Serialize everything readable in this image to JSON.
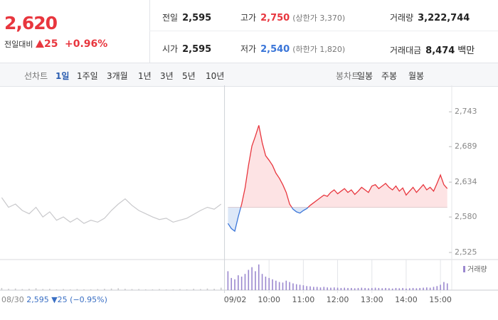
{
  "header": {
    "price": "2,620",
    "change_label": "전일대비",
    "change": "25",
    "change_pct": "+0.96%",
    "stats": [
      {
        "label": "전일",
        "value": "2,595"
      },
      {
        "label": "고가",
        "value": "2,750",
        "note": "(상한가 3,370)"
      },
      {
        "label": "거래량",
        "value": "3,222,744"
      },
      {
        "label": "시가",
        "value": "2,595"
      },
      {
        "label": "저가",
        "value": "2,540",
        "note": "(하한가 1,820)"
      },
      {
        "label": "거래대금",
        "value": "8,474",
        "unit": "백만"
      }
    ]
  },
  "tabs": {
    "line_label": "선차트",
    "periods": [
      "1일",
      "1주일",
      "3개월",
      "1년",
      "3년",
      "5년",
      "10년"
    ],
    "candle_label": "봉차트",
    "candle_periods": [
      "일봉",
      "주봉",
      "월봉"
    ]
  },
  "chart_data": {
    "type": "line",
    "ylim": [
      2514,
      2773
    ],
    "yticks": [
      {
        "value": 2525,
        "label": "2,525"
      },
      {
        "value": 2580,
        "label": "2,580"
      },
      {
        "value": 2634,
        "label": "2,634"
      },
      {
        "value": 2689,
        "label": "2,689"
      },
      {
        "value": 2743,
        "label": "2,743"
      }
    ],
    "xlim": [
      -6.85,
      6.33
    ],
    "xticks": [
      {
        "value": -0.3,
        "label": "09/02"
      },
      {
        "value": 1,
        "label": "10:00"
      },
      {
        "value": 2,
        "label": "11:00"
      },
      {
        "value": 3,
        "label": "12:00"
      },
      {
        "value": 4,
        "label": "13:00"
      },
      {
        "value": 5,
        "label": "14:00"
      },
      {
        "value": 6,
        "label": "15:00"
      }
    ],
    "baseline": 2595,
    "up_color": "#e8363e",
    "down_color": "#3a75d8",
    "volume_label": "거래량",
    "volume_color": "#9b88cf",
    "volume_ylim": [
      0,
      100
    ],
    "prev_day": {
      "date": "08/30",
      "close": "2,595",
      "change": "▼25",
      "change_pct": "(−0.95%)"
    },
    "series": [
      {
        "name": "08/30",
        "color": "#c9c9cc",
        "x": [
          -6.8,
          -6.6,
          -6.4,
          -6.2,
          -6.0,
          -5.8,
          -5.6,
          -5.4,
          -5.2,
          -5.0,
          -4.8,
          -4.6,
          -4.4,
          -4.2,
          -4.0,
          -3.8,
          -3.6,
          -3.4,
          -3.2,
          -3.0,
          -2.8,
          -2.6,
          -2.4,
          -2.2,
          -2.0,
          -1.8,
          -1.6,
          -1.4,
          -1.2,
          -1.0,
          -0.8,
          -0.6,
          -0.4
        ],
        "values": [
          2610,
          2595,
          2600,
          2590,
          2585,
          2595,
          2580,
          2588,
          2575,
          2580,
          2572,
          2578,
          2570,
          2575,
          2572,
          2578,
          2590,
          2600,
          2608,
          2598,
          2590,
          2585,
          2580,
          2576,
          2578,
          2572,
          2575,
          2578,
          2584,
          2590,
          2595,
          2592,
          2600
        ],
        "volume": [
          8,
          5,
          6,
          4,
          5,
          7,
          4,
          5,
          3,
          4,
          3,
          4,
          3,
          3,
          4,
          5,
          6,
          7,
          5,
          4,
          4,
          3,
          3,
          4,
          3,
          3,
          4,
          3,
          5,
          4,
          6,
          5,
          9
        ]
      },
      {
        "name": "09/02",
        "color": "#e8363e",
        "x": [
          -0.2,
          -0.1,
          0,
          0.1,
          0.2,
          0.3,
          0.4,
          0.5,
          0.6,
          0.7,
          0.8,
          0.9,
          1,
          1.1,
          1.2,
          1.3,
          1.4,
          1.5,
          1.6,
          1.7,
          1.8,
          1.9,
          2,
          2.1,
          2.2,
          2.3,
          2.4,
          2.5,
          2.6,
          2.7,
          2.8,
          2.9,
          3,
          3.1,
          3.2,
          3.3,
          3.4,
          3.5,
          3.6,
          3.7,
          3.8,
          3.9,
          4,
          4.1,
          4.2,
          4.3,
          4.4,
          4.5,
          4.6,
          4.7,
          4.8,
          4.9,
          5,
          5.1,
          5.2,
          5.3,
          5.4,
          5.5,
          5.6,
          5.7,
          5.8,
          5.9,
          6,
          6.1,
          6.2
        ],
        "values": [
          2570,
          2562,
          2558,
          2580,
          2600,
          2625,
          2660,
          2690,
          2705,
          2722,
          2695,
          2675,
          2668,
          2660,
          2648,
          2640,
          2630,
          2618,
          2600,
          2592,
          2588,
          2586,
          2590,
          2593,
          2598,
          2602,
          2606,
          2610,
          2614,
          2612,
          2618,
          2622,
          2616,
          2620,
          2624,
          2618,
          2622,
          2615,
          2620,
          2626,
          2622,
          2618,
          2628,
          2630,
          2624,
          2628,
          2632,
          2626,
          2622,
          2628,
          2620,
          2625,
          2614,
          2620,
          2626,
          2618,
          2624,
          2630,
          2622,
          2626,
          2620,
          2632,
          2645,
          2630,
          2624
        ],
        "volume": [
          70,
          45,
          40,
          55,
          50,
          60,
          75,
          85,
          70,
          95,
          60,
          50,
          45,
          40,
          35,
          30,
          28,
          35,
          30,
          25,
          22,
          20,
          18,
          15,
          14,
          12,
          12,
          10,
          12,
          10,
          9,
          10,
          9,
          8,
          9,
          8,
          8,
          7,
          8,
          9,
          8,
          7,
          8,
          9,
          8,
          7,
          8,
          7,
          6,
          8,
          7,
          8,
          6,
          7,
          8,
          7,
          8,
          9,
          10,
          9,
          12,
          15,
          20,
          30,
          25
        ]
      }
    ]
  }
}
